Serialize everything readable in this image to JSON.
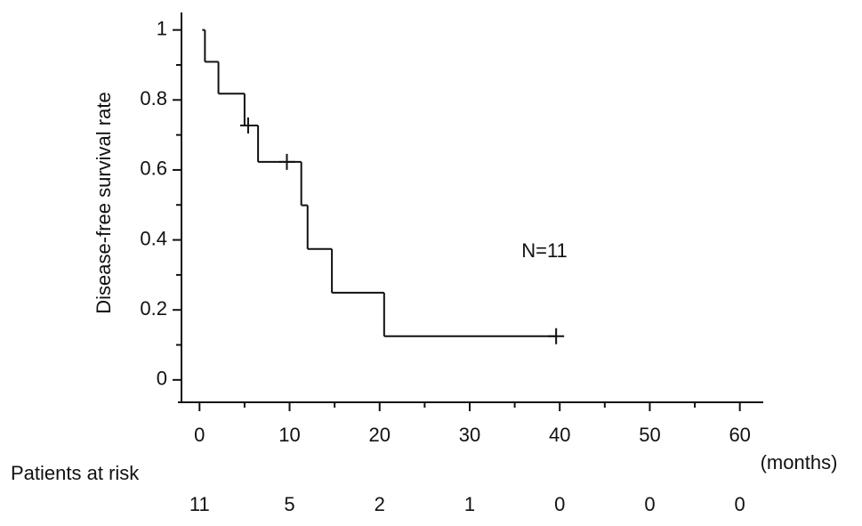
{
  "chart_data": {
    "type": "survival",
    "ylabel": "Disease-free survival rate",
    "xlabel": "(months)",
    "annotation": "N=11",
    "color": "#000000",
    "xlim": [
      -2.4,
      62.6
    ],
    "ylim": [
      -0.064,
      1.05
    ],
    "xticks": [
      0,
      10,
      20,
      30,
      40,
      50,
      60
    ],
    "yticks": [
      0,
      0.2,
      0.4,
      0.6,
      0.8,
      1
    ],
    "xminor_ticks": [
      5,
      15,
      25,
      35,
      45,
      55
    ],
    "yminor_ticks": [
      0.1,
      0.3,
      0.5,
      0.7,
      0.9
    ],
    "series": [
      {
        "x": [
          0.3,
          0.6,
          2.1,
          5.0,
          6.5,
          11.3,
          12.0,
          14.7,
          20.5
        ],
        "values": [
          1,
          0.909,
          0.818,
          0.727,
          0.623,
          0.499,
          0.374,
          0.249,
          0.125
        ]
      }
    ],
    "censored": {
      "x": [
        5.4,
        9.7,
        39.6
      ],
      "values": [
        0.727,
        0.623,
        0.125
      ]
    },
    "at_risk": {
      "label": "Patients at risk",
      "values": [
        11,
        5,
        2,
        1,
        0,
        0,
        0
      ]
    }
  }
}
